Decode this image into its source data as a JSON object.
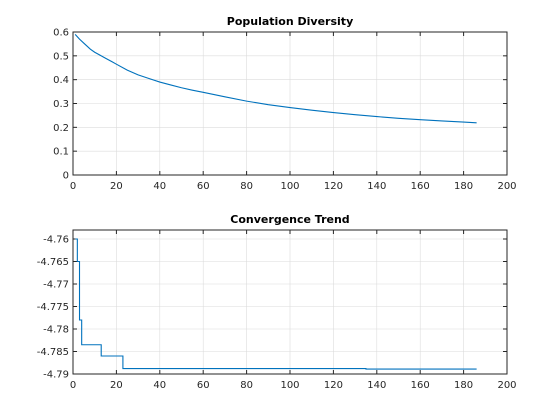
{
  "chart_data": [
    {
      "type": "line",
      "title": "Population Diversity",
      "xlabel": "",
      "ylabel": "",
      "xlim": [
        0,
        200
      ],
      "ylim": [
        0,
        0.6
      ],
      "xticks": [
        0,
        20,
        40,
        60,
        80,
        100,
        120,
        140,
        160,
        180,
        200
      ],
      "yticks": [
        0,
        0.1,
        0.2,
        0.3,
        0.4,
        0.5,
        0.6
      ],
      "grid": true,
      "series_color": "#0072bd",
      "series": [
        {
          "step": false,
          "x": [
            1,
            3,
            5,
            8,
            10,
            12,
            15,
            18,
            20,
            25,
            30,
            35,
            40,
            45,
            50,
            55,
            60,
            70,
            80,
            90,
            100,
            110,
            120,
            130,
            140,
            150,
            160,
            170,
            180,
            186
          ],
          "y": [
            0.59,
            0.57,
            0.553,
            0.528,
            0.515,
            0.505,
            0.49,
            0.475,
            0.465,
            0.44,
            0.42,
            0.405,
            0.39,
            0.378,
            0.366,
            0.356,
            0.347,
            0.328,
            0.31,
            0.295,
            0.283,
            0.272,
            0.262,
            0.253,
            0.245,
            0.238,
            0.232,
            0.227,
            0.222,
            0.219
          ]
        }
      ]
    },
    {
      "type": "line",
      "title": "Convergence Trend",
      "xlabel": "",
      "ylabel": "",
      "xlim": [
        0,
        200
      ],
      "ylim": [
        -4.79,
        -4.758
      ],
      "xticks": [
        0,
        20,
        40,
        60,
        80,
        100,
        120,
        140,
        160,
        180,
        200
      ],
      "yticks": [
        -4.76,
        -4.765,
        -4.77,
        -4.775,
        -4.78,
        -4.785,
        -4.79
      ],
      "grid": true,
      "series_color": "#0072bd",
      "series": [
        {
          "step": true,
          "x": [
            1,
            2,
            3,
            4,
            13,
            23,
            135,
            186
          ],
          "y": [
            -4.76,
            -4.765,
            -4.778,
            -4.7835,
            -4.786,
            -4.7888,
            -4.7889,
            -4.7889
          ]
        }
      ]
    }
  ]
}
